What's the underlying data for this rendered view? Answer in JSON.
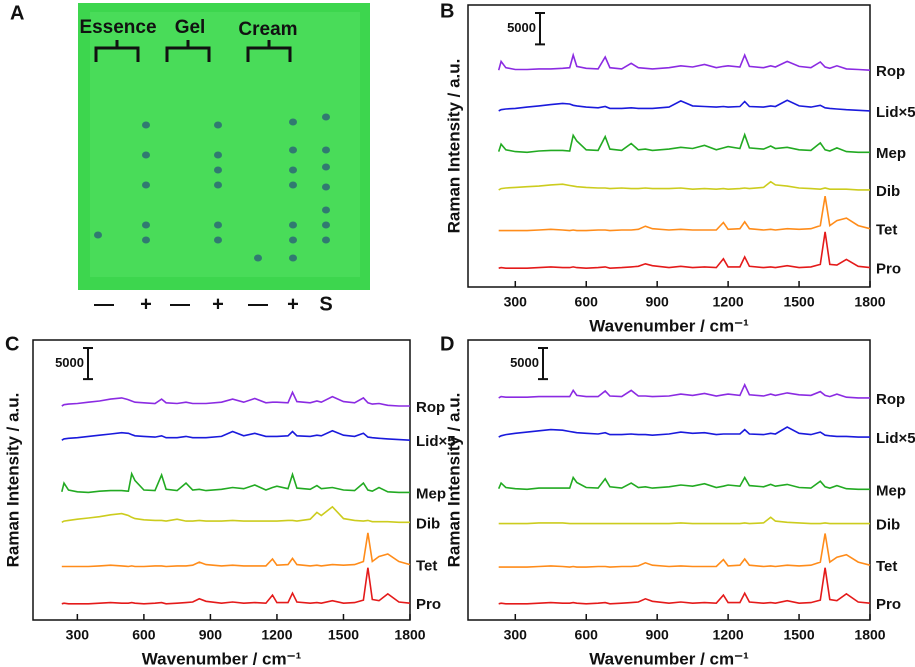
{
  "photo": {
    "panel": "A",
    "groups": [
      "Essence",
      "Gel",
      "Cream"
    ],
    "lanes": [
      "—",
      "+",
      "—",
      "+",
      "—",
      "+",
      "S"
    ]
  },
  "chart_data": [
    {
      "type": "line",
      "panel": "B",
      "y_label": "Raman Intensity / a.u.",
      "x_label": "Wavenumber / cm⁻¹",
      "scale_bar": 5000,
      "xlim": [
        100,
        1800
      ],
      "xticks": [
        300,
        600,
        900,
        1200,
        1500,
        1800
      ],
      "ylim": [
        0,
        45000
      ],
      "x": [
        230,
        240,
        260,
        300,
        350,
        400,
        450,
        500,
        530,
        545,
        560,
        600,
        650,
        680,
        700,
        750,
        790,
        820,
        850,
        880,
        950,
        1000,
        1050,
        1100,
        1150,
        1180,
        1200,
        1250,
        1270,
        1290,
        1350,
        1380,
        1400,
        1450,
        1500,
        1550,
        1590,
        1610,
        1630,
        1660,
        1700,
        1750,
        1800
      ],
      "series": [
        {
          "name": "Rop",
          "color": "#8b2be2",
          "values": [
            34600,
            36000,
            35000,
            34700,
            34700,
            34800,
            34800,
            34900,
            35000,
            37000,
            35200,
            34900,
            34800,
            36700,
            35000,
            34800,
            35700,
            35000,
            34900,
            34800,
            35000,
            35300,
            35100,
            35500,
            35000,
            35200,
            35300,
            35100,
            37000,
            35200,
            35000,
            35300,
            35100,
            36000,
            35200,
            35000,
            35900,
            35100,
            34900,
            35300,
            34800,
            34700,
            34600
          ]
        },
        {
          "name": "Lid×5",
          "color": "#1a1adc",
          "values": [
            28100,
            28300,
            28400,
            28500,
            28700,
            28900,
            29100,
            29300,
            29200,
            29000,
            28900,
            28700,
            28600,
            28800,
            28500,
            28500,
            28600,
            28500,
            28500,
            28500,
            28700,
            29700,
            28900,
            28800,
            28700,
            28800,
            28700,
            28800,
            29600,
            28800,
            28700,
            28900,
            28800,
            29800,
            28900,
            28700,
            29000,
            28600,
            28500,
            28400,
            28300,
            28200,
            28100
          ]
        },
        {
          "name": "Mep",
          "color": "#22aa22",
          "values": [
            21600,
            22800,
            21900,
            21600,
            21500,
            21700,
            21800,
            21800,
            21700,
            24200,
            23300,
            21900,
            21800,
            24000,
            22000,
            21800,
            22900,
            21900,
            22000,
            21800,
            22000,
            22300,
            22100,
            22600,
            21900,
            22200,
            22400,
            22100,
            24300,
            22200,
            22000,
            22500,
            22100,
            22300,
            21900,
            21800,
            23000,
            21900,
            21700,
            22200,
            21600,
            21500,
            21500
          ]
        },
        {
          "name": "Dib",
          "color": "#cccc1e",
          "values": [
            15500,
            15700,
            15800,
            15900,
            16000,
            16100,
            16300,
            16400,
            16200,
            16100,
            16000,
            15900,
            15800,
            15800,
            15700,
            15800,
            15700,
            15700,
            15800,
            15700,
            15700,
            15800,
            15600,
            15700,
            15600,
            15700,
            15600,
            15700,
            15800,
            15700,
            15900,
            16800,
            16300,
            16100,
            15800,
            15700,
            15600,
            15800,
            15600,
            15600,
            15600,
            15500,
            15500
          ]
        },
        {
          "name": "Tet",
          "color": "#ff8c1a",
          "values": [
            9000,
            9000,
            9000,
            9000,
            9000,
            9100,
            9200,
            9100,
            9000,
            9100,
            9000,
            9000,
            9100,
            9100,
            9000,
            9100,
            9100,
            9200,
            9700,
            9300,
            9100,
            9200,
            9100,
            9100,
            9100,
            10300,
            9200,
            9300,
            10400,
            9300,
            9100,
            9200,
            9100,
            9300,
            9200,
            9300,
            9800,
            14500,
            9800,
            10600,
            11000,
            9800,
            9300
          ]
        },
        {
          "name": "Pro",
          "color": "#e41a1a",
          "values": [
            3000,
            3100,
            3000,
            3000,
            3000,
            3100,
            3200,
            3100,
            3100,
            3200,
            3100,
            3000,
            3100,
            3200,
            3000,
            3100,
            3200,
            3300,
            3700,
            3400,
            3100,
            3300,
            3100,
            3200,
            3100,
            4500,
            3200,
            3200,
            4800,
            3300,
            3100,
            3200,
            3100,
            3400,
            3100,
            3200,
            3600,
            8800,
            3600,
            3500,
            4400,
            3300,
            3100
          ]
        }
      ]
    },
    {
      "type": "line",
      "panel": "C",
      "y_label": "Raman Intensity / a.u.",
      "x_label": "Wavenumber / cm⁻¹",
      "scale_bar": 5000,
      "xlim": [
        100,
        1800
      ],
      "xticks": [
        300,
        600,
        900,
        1200,
        1500,
        1800
      ],
      "ylim": [
        0,
        45000
      ],
      "x": [
        230,
        240,
        260,
        300,
        350,
        400,
        450,
        500,
        530,
        545,
        560,
        600,
        650,
        680,
        700,
        750,
        790,
        820,
        850,
        880,
        950,
        1000,
        1050,
        1100,
        1150,
        1180,
        1200,
        1250,
        1270,
        1290,
        1350,
        1380,
        1400,
        1450,
        1500,
        1550,
        1590,
        1610,
        1630,
        1660,
        1700,
        1750,
        1800
      ],
      "series": [
        {
          "name": "Rop",
          "color": "#8b2be2",
          "values": [
            34400,
            34600,
            34700,
            34800,
            35000,
            35200,
            35500,
            35700,
            35400,
            35200,
            35000,
            34900,
            34800,
            35500,
            34900,
            34800,
            35000,
            34800,
            34800,
            34800,
            35000,
            35500,
            35000,
            35600,
            34900,
            35000,
            35000,
            34900,
            36600,
            35100,
            34900,
            35200,
            35000,
            35900,
            35100,
            34900,
            35700,
            34900,
            34700,
            34800,
            34500,
            34400,
            34400
          ]
        },
        {
          "name": "Lid×5",
          "color": "#1a1adc",
          "values": [
            28900,
            29100,
            29200,
            29300,
            29500,
            29700,
            29900,
            30100,
            30000,
            29800,
            29600,
            29500,
            29400,
            29600,
            29300,
            29300,
            29500,
            29300,
            29300,
            29300,
            29500,
            30300,
            29600,
            30000,
            29500,
            29500,
            29500,
            29600,
            30300,
            29600,
            29500,
            29700,
            29600,
            30400,
            29700,
            29500,
            30000,
            29400,
            29300,
            29200,
            29100,
            29000,
            28900
          ]
        },
        {
          "name": "Mep",
          "color": "#22aa22",
          "values": [
            20600,
            22000,
            20900,
            20600,
            20500,
            20700,
            20800,
            20800,
            20700,
            23500,
            22400,
            20900,
            20800,
            23300,
            21000,
            20800,
            22000,
            20900,
            21000,
            20800,
            21000,
            21300,
            21100,
            21700,
            20900,
            21300,
            21500,
            21100,
            23400,
            21200,
            21000,
            21600,
            21100,
            21300,
            20900,
            20800,
            22000,
            20900,
            20700,
            21300,
            20600,
            20500,
            20500
          ]
        },
        {
          "name": "Dib",
          "color": "#cccc1e",
          "values": [
            15700,
            15900,
            16000,
            16200,
            16400,
            16600,
            16900,
            17100,
            16800,
            16500,
            16300,
            16100,
            16000,
            16000,
            15900,
            16200,
            15900,
            15900,
            16000,
            15900,
            15900,
            16000,
            15900,
            15900,
            15900,
            15900,
            15900,
            16000,
            16000,
            15900,
            16200,
            17300,
            16800,
            18200,
            16300,
            16000,
            15900,
            16000,
            15800,
            15800,
            15800,
            15700,
            15700
          ]
        },
        {
          "name": "Tet",
          "color": "#ff8c1a",
          "values": [
            8600,
            8600,
            8600,
            8600,
            8600,
            8700,
            8800,
            8700,
            8600,
            8700,
            8600,
            8600,
            8700,
            8700,
            8600,
            8700,
            8700,
            8800,
            9300,
            8900,
            8700,
            8800,
            8700,
            8700,
            8700,
            9800,
            8800,
            8900,
            9900,
            8900,
            8700,
            8800,
            8700,
            8900,
            8800,
            8900,
            9400,
            14000,
            9400,
            10200,
            10600,
            9400,
            8900
          ]
        },
        {
          "name": "Pro",
          "color": "#e41a1a",
          "values": [
            2600,
            2700,
            2600,
            2600,
            2600,
            2700,
            2800,
            2700,
            2700,
            2800,
            2700,
            2600,
            2700,
            2800,
            2600,
            2700,
            2800,
            2900,
            3400,
            3000,
            2700,
            2900,
            2700,
            2800,
            2700,
            4000,
            2800,
            2800,
            4300,
            2900,
            2700,
            2800,
            2700,
            3100,
            2700,
            2800,
            3200,
            8400,
            3300,
            3100,
            4200,
            2900,
            2700
          ]
        }
      ]
    },
    {
      "type": "line",
      "panel": "D",
      "y_label": "Raman Intensity / a.u.",
      "x_label": "Wavenumber / cm⁻¹",
      "scale_bar": 5000,
      "xlim": [
        100,
        1800
      ],
      "xticks": [
        300,
        600,
        900,
        1200,
        1500,
        1800
      ],
      "ylim": [
        0,
        45000
      ],
      "x": [
        230,
        240,
        260,
        300,
        350,
        400,
        450,
        500,
        530,
        545,
        560,
        600,
        650,
        680,
        700,
        750,
        790,
        820,
        850,
        880,
        950,
        1000,
        1050,
        1100,
        1150,
        1180,
        1200,
        1250,
        1270,
        1290,
        1350,
        1380,
        1400,
        1450,
        1500,
        1550,
        1590,
        1610,
        1630,
        1660,
        1700,
        1750,
        1800
      ],
      "series": [
        {
          "name": "Rop",
          "color": "#8b2be2",
          "values": [
            35700,
            35900,
            35800,
            35800,
            35800,
            35900,
            35900,
            35900,
            35900,
            36900,
            36100,
            35900,
            35900,
            36800,
            36000,
            35900,
            36900,
            36000,
            36000,
            35900,
            36000,
            36300,
            36100,
            36400,
            36000,
            36200,
            36300,
            36100,
            37800,
            36200,
            36000,
            36300,
            36100,
            36500,
            36200,
            36100,
            36700,
            36100,
            35900,
            36300,
            35800,
            35700,
            35700
          ]
        },
        {
          "name": "Lid×5",
          "color": "#1a1adc",
          "values": [
            29400,
            29600,
            29800,
            30000,
            30200,
            30400,
            30600,
            30500,
            30300,
            30200,
            30100,
            30000,
            29900,
            30100,
            29800,
            29800,
            29900,
            29800,
            29800,
            29700,
            29900,
            30200,
            30000,
            30100,
            29800,
            29900,
            29900,
            29900,
            30600,
            29900,
            29800,
            30000,
            29900,
            31000,
            30000,
            29800,
            30200,
            29700,
            29600,
            29500,
            29500,
            29400,
            29400
          ]
        },
        {
          "name": "Mep",
          "color": "#22aa22",
          "values": [
            21100,
            22000,
            21300,
            21100,
            21000,
            21200,
            21200,
            21200,
            21200,
            22900,
            22100,
            21300,
            21200,
            22700,
            21400,
            21200,
            22000,
            21300,
            21400,
            21200,
            21400,
            21700,
            21500,
            21900,
            21300,
            21500,
            21700,
            21500,
            22900,
            21600,
            21400,
            21800,
            21500,
            21800,
            21300,
            21200,
            22300,
            21400,
            21200,
            21600,
            21100,
            21000,
            21000
          ]
        },
        {
          "name": "Dib",
          "color": "#cccc1e",
          "values": [
            15500,
            15500,
            15500,
            15500,
            15500,
            15600,
            15600,
            15600,
            15500,
            15500,
            15500,
            15500,
            15500,
            15500,
            15500,
            15500,
            15500,
            15500,
            15500,
            15500,
            15500,
            15600,
            15500,
            15500,
            15500,
            15500,
            15500,
            15500,
            15600,
            15500,
            15600,
            16500,
            15900,
            15700,
            15600,
            15500,
            15500,
            15600,
            15500,
            15500,
            15500,
            15500,
            15500
          ]
        },
        {
          "name": "Tet",
          "color": "#ff8c1a",
          "values": [
            8500,
            8500,
            8500,
            8500,
            8500,
            8600,
            8700,
            8600,
            8500,
            8600,
            8500,
            8500,
            8600,
            8600,
            8500,
            8600,
            8600,
            8700,
            9200,
            8800,
            8600,
            8700,
            8600,
            8600,
            8600,
            9700,
            8700,
            8800,
            9800,
            8800,
            8600,
            8700,
            8600,
            8800,
            8700,
            8800,
            9300,
            13900,
            9300,
            10100,
            10500,
            9300,
            8800
          ]
        },
        {
          "name": "Pro",
          "color": "#e41a1a",
          "values": [
            2600,
            2700,
            2600,
            2600,
            2600,
            2700,
            2800,
            2700,
            2700,
            2800,
            2700,
            2600,
            2700,
            2800,
            2600,
            2700,
            2800,
            2900,
            3400,
            3000,
            2700,
            2900,
            2700,
            2800,
            2700,
            4000,
            2800,
            2800,
            4300,
            2900,
            2700,
            2800,
            2700,
            3100,
            2700,
            2800,
            3200,
            8400,
            3300,
            3100,
            4200,
            2900,
            2700
          ]
        }
      ]
    }
  ]
}
